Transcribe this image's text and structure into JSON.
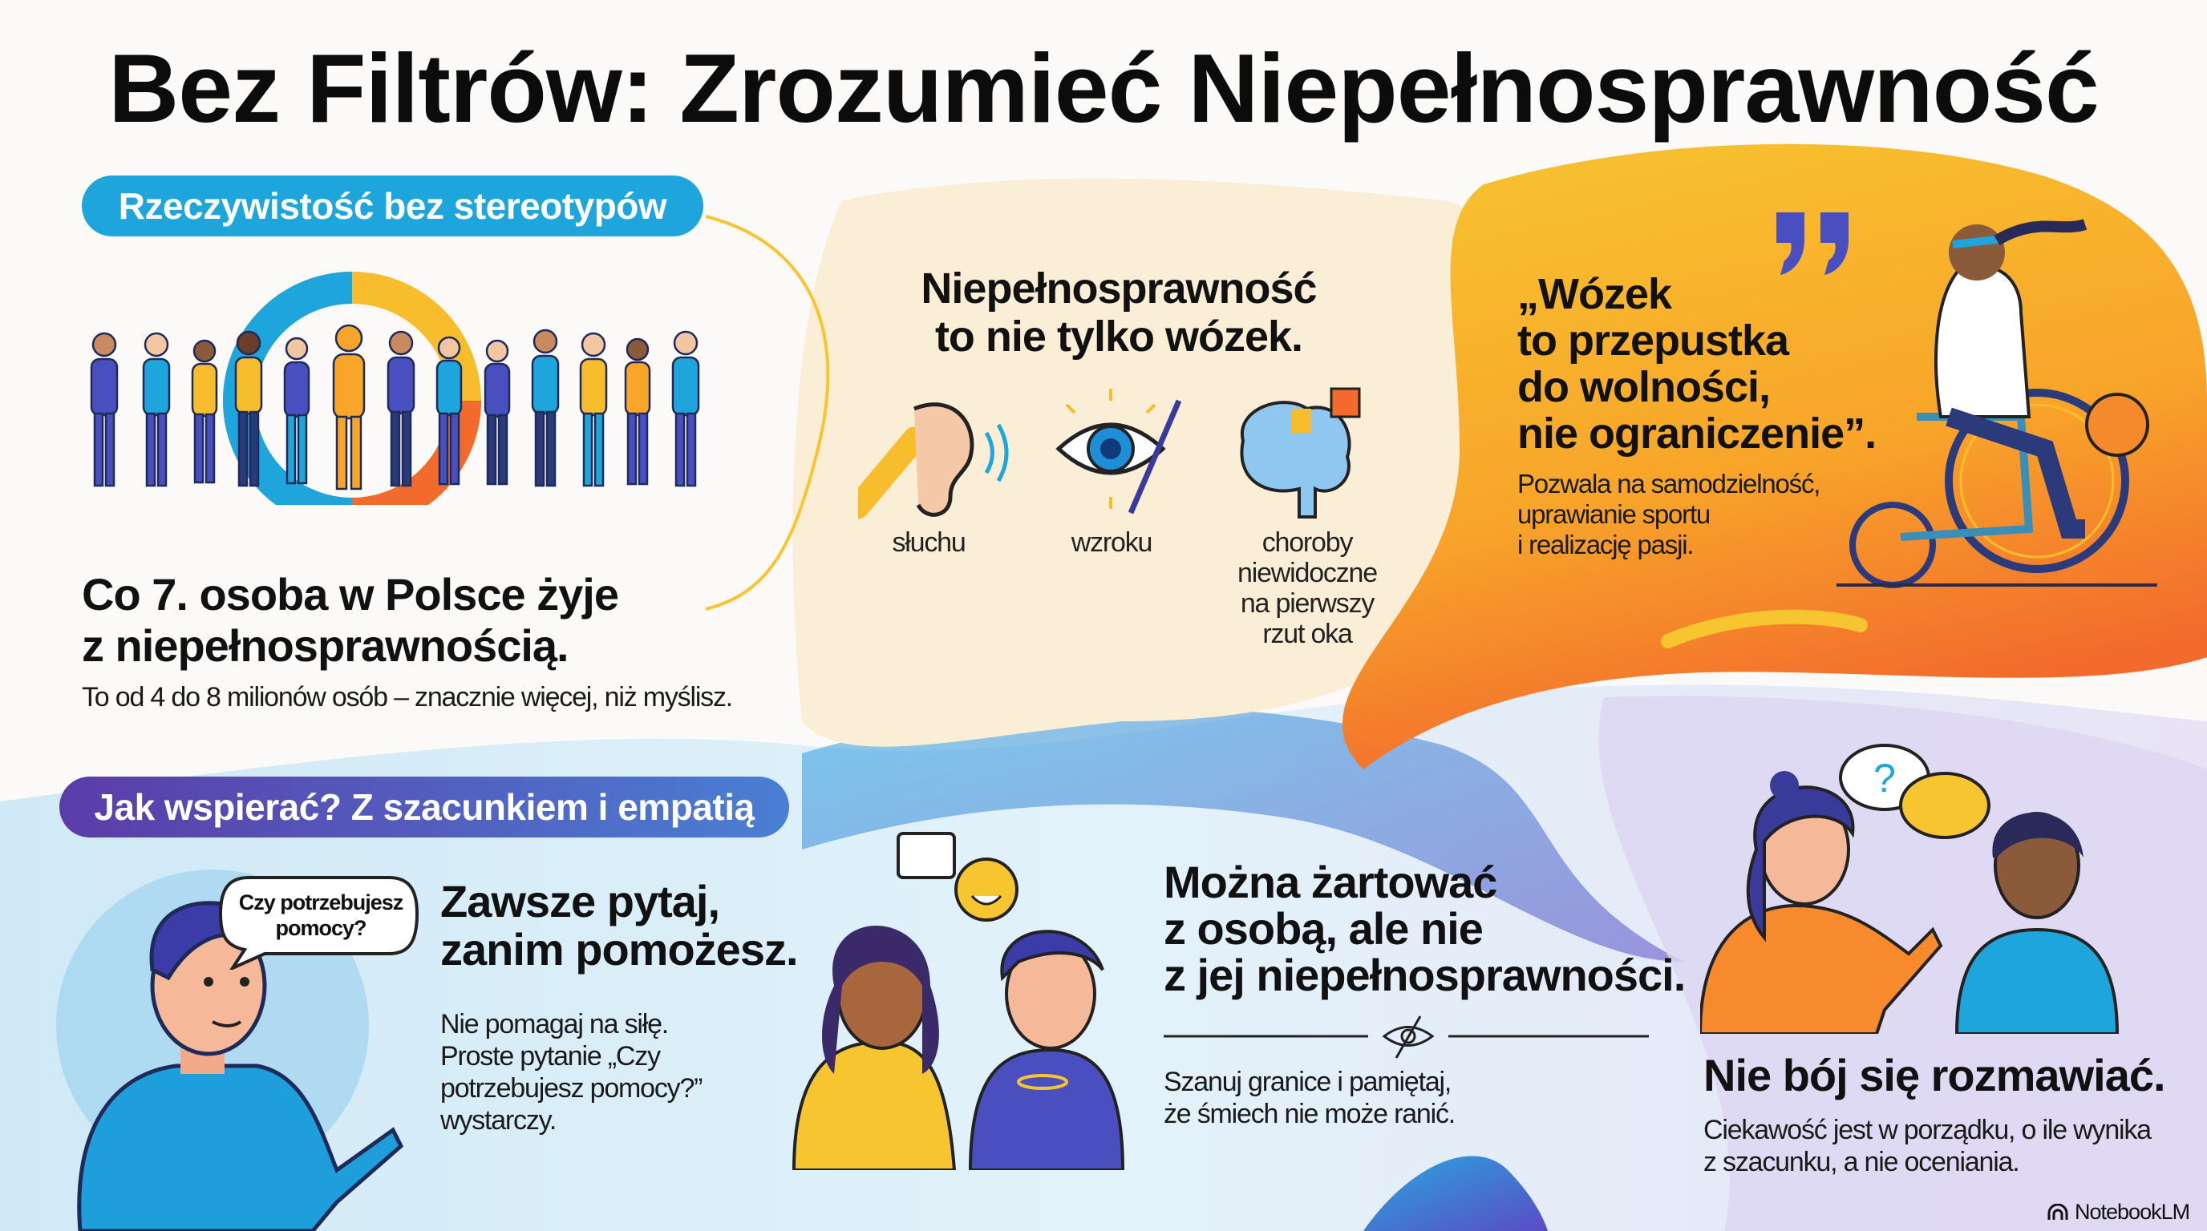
{
  "title": "Bez Filtrów: Zrozumieć Niepełnosprawność",
  "section1": {
    "pill": "Rzeczywistość bez stereotypów",
    "headline_line1": "Co 7. osoba w Polsce żyje",
    "headline_line2": "z niepełnosprawnością.",
    "subtext": "To od 4 do 8 milionów osób – znacznie więcej, niż myślisz.",
    "donut_colors": [
      "#1ea5dc",
      "#f7bd2c",
      "#f26a2c"
    ]
  },
  "section2": {
    "headline_line1": "Niepełnosprawność",
    "headline_line2": "to nie tylko wózek.",
    "icons": [
      {
        "icon": "ear-icon",
        "label_lines": [
          "słuchu"
        ]
      },
      {
        "icon": "eye-icon",
        "label_lines": [
          "wzroku"
        ]
      },
      {
        "icon": "brain-puzzle-icon",
        "label_lines": [
          "choroby",
          "niewidoczne",
          "na pierwszy",
          "rzut oka"
        ]
      }
    ]
  },
  "section3": {
    "quote_lines": [
      "„Wózek",
      "to przepustka",
      "do wolności,",
      "nie ograniczenie”."
    ],
    "body_lines": [
      "Pozwala na samodzielność,",
      "uprawianie sportu",
      "i realizację pasji."
    ],
    "quote_mark_color": "#4a4fc0"
  },
  "section4": {
    "pill": "Jak wspierać? Z szacunkiem i empatią",
    "bubble_lines": [
      "Czy potrzebujesz",
      "pomocy?"
    ],
    "tip1": {
      "headline_lines": [
        "Zawsze pytaj,",
        "zanim pomożesz."
      ],
      "body_lines": [
        "Nie pomagaj na siłę.",
        "Proste pytanie „Czy",
        "potrzebujesz pomocy?”",
        "wystarczy."
      ]
    },
    "tip2": {
      "headline_lines": [
        "Można żartować",
        "z osobą, ale nie",
        "z jej niepełnosprawności."
      ],
      "body_lines": [
        "Szanuj granice i pamiętaj,",
        "że śmiech nie może ranić."
      ]
    },
    "tip3": {
      "headline": "Nie bój się rozmawiać.",
      "body_lines": [
        "Ciekawość jest w porządku, o ile wynika",
        "z szacunku, a nie oceniania."
      ]
    }
  },
  "footer": {
    "brand": "NotebookLM"
  }
}
